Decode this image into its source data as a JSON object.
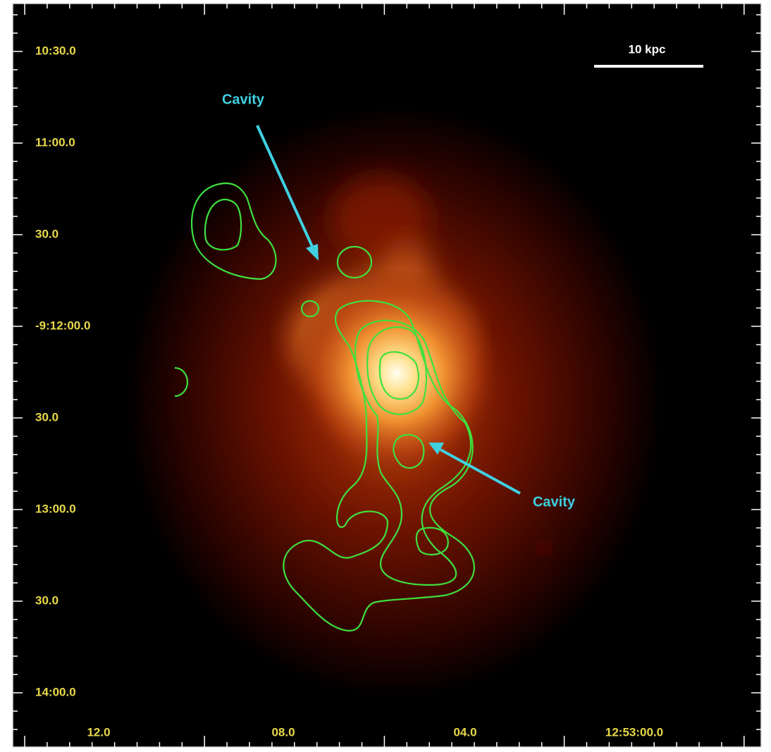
{
  "figure": {
    "y_labels": [
      "10:30.0",
      "11:00.0",
      "30.0",
      "-9:12:00.0",
      "30.0",
      "13:00.0",
      "30.0",
      "14:00.0"
    ],
    "x_labels": [
      "12.0",
      "08.0",
      "04.0",
      "12:53:00.0"
    ],
    "scale_bar": "10 kpc",
    "annotations": [
      "Cavity",
      "Cavity"
    ]
  }
}
